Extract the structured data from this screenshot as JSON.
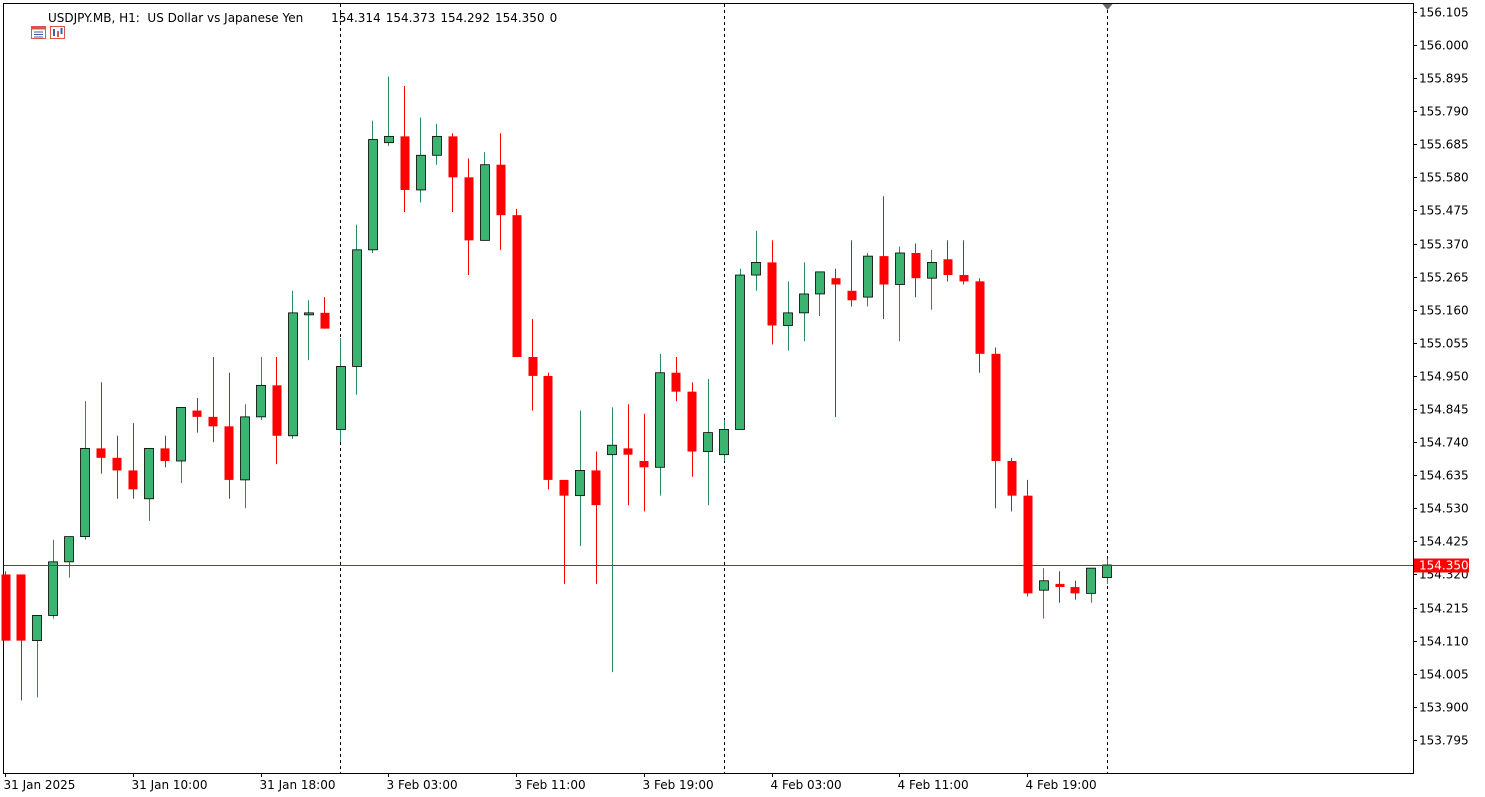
{
  "header": {
    "symbol": "USDJPY.MB, H1:",
    "description": "US Dollar vs Japanese Yen",
    "open": "154.314",
    "high": "154.373",
    "low": "154.292",
    "close": "154.350",
    "tick_volume": "0",
    "icons": [
      "calendar-list-icon",
      "chart-settings-icon"
    ]
  },
  "colors": {
    "bull": "#3cb371",
    "bear": "#ff0000",
    "outline": "#000000",
    "price_line": "#ff0000",
    "price_tag": "#ff0000",
    "separator": "#000000",
    "marker": "#666666"
  },
  "chart_data": {
    "type": "candlestick",
    "title": "USDJPY.MB, H1: US Dollar vs Japanese Yen",
    "ylim": [
      153.69,
      156.13
    ],
    "y_ticks": [
      "156.105",
      "156.000",
      "155.895",
      "155.790",
      "155.685",
      "155.580",
      "155.475",
      "155.370",
      "155.265",
      "155.160",
      "155.055",
      "154.950",
      "154.845",
      "154.740",
      "154.635",
      "154.530",
      "154.425",
      "154.320",
      "154.215",
      "154.110",
      "154.005",
      "153.900",
      "153.795"
    ],
    "x_ticks": [
      {
        "index": 0,
        "label": "31 Jan 2025"
      },
      {
        "index": 8,
        "label": "31 Jan 10:00"
      },
      {
        "index": 16,
        "label": "31 Jan 18:00"
      },
      {
        "index": 24,
        "label": "3 Feb 03:00"
      },
      {
        "index": 32,
        "label": "3 Feb 11:00"
      },
      {
        "index": 40,
        "label": "3 Feb 19:00"
      },
      {
        "index": 48,
        "label": "4 Feb 03:00"
      },
      {
        "index": 56,
        "label": "4 Feb 11:00"
      },
      {
        "index": 64,
        "label": "4 Feb 19:00"
      }
    ],
    "day_separators": [
      21,
      45,
      69
    ],
    "last_price": "154.350",
    "last_price_value": 154.35,
    "candles": [
      {
        "o": 154.32,
        "h": 154.33,
        "l": 154.11,
        "c": 154.11
      },
      {
        "o": 154.32,
        "h": 154.32,
        "l": 153.92,
        "c": 154.11
      },
      {
        "o": 154.11,
        "h": 154.19,
        "l": 153.93,
        "c": 154.19
      },
      {
        "o": 154.19,
        "h": 154.43,
        "l": 154.18,
        "c": 154.36
      },
      {
        "o": 154.36,
        "h": 154.44,
        "l": 154.31,
        "c": 154.44
      },
      {
        "o": 154.44,
        "h": 154.87,
        "l": 154.43,
        "c": 154.72
      },
      {
        "o": 154.72,
        "h": 154.93,
        "l": 154.64,
        "c": 154.69
      },
      {
        "o": 154.69,
        "h": 154.76,
        "l": 154.56,
        "c": 154.65
      },
      {
        "o": 154.65,
        "h": 154.8,
        "l": 154.56,
        "c": 154.59
      },
      {
        "o": 154.56,
        "h": 154.72,
        "l": 154.49,
        "c": 154.72
      },
      {
        "o": 154.72,
        "h": 154.76,
        "l": 154.66,
        "c": 154.68
      },
      {
        "o": 154.68,
        "h": 154.85,
        "l": 154.61,
        "c": 154.85
      },
      {
        "o": 154.84,
        "h": 154.88,
        "l": 154.77,
        "c": 154.82
      },
      {
        "o": 154.82,
        "h": 155.01,
        "l": 154.74,
        "c": 154.79
      },
      {
        "o": 154.79,
        "h": 154.96,
        "l": 154.56,
        "c": 154.62
      },
      {
        "o": 154.62,
        "h": 154.86,
        "l": 154.53,
        "c": 154.82
      },
      {
        "o": 154.82,
        "h": 155.01,
        "l": 154.81,
        "c": 154.92
      },
      {
        "o": 154.92,
        "h": 155.01,
        "l": 154.67,
        "c": 154.76
      },
      {
        "o": 154.76,
        "h": 155.22,
        "l": 154.75,
        "c": 155.15
      },
      {
        "o": 155.15,
        "h": 155.19,
        "l": 155.0,
        "c": 155.15
      },
      {
        "o": 155.15,
        "h": 155.2,
        "l": 155.1,
        "c": 155.1
      },
      {
        "o": 154.78,
        "h": 155.07,
        "l": 154.74,
        "c": 154.98
      },
      {
        "o": 154.98,
        "h": 155.43,
        "l": 154.89,
        "c": 155.35
      },
      {
        "o": 155.35,
        "h": 155.76,
        "l": 155.34,
        "c": 155.7
      },
      {
        "o": 155.69,
        "h": 155.9,
        "l": 155.68,
        "c": 155.71
      },
      {
        "o": 155.71,
        "h": 155.87,
        "l": 155.47,
        "c": 155.54
      },
      {
        "o": 155.54,
        "h": 155.77,
        "l": 155.5,
        "c": 155.65
      },
      {
        "o": 155.65,
        "h": 155.75,
        "l": 155.62,
        "c": 155.71
      },
      {
        "o": 155.71,
        "h": 155.72,
        "l": 155.47,
        "c": 155.58
      },
      {
        "o": 155.58,
        "h": 155.64,
        "l": 155.27,
        "c": 155.38
      },
      {
        "o": 155.38,
        "h": 155.66,
        "l": 155.38,
        "c": 155.62
      },
      {
        "o": 155.62,
        "h": 155.72,
        "l": 155.35,
        "c": 155.46
      },
      {
        "o": 155.46,
        "h": 155.48,
        "l": 155.01,
        "c": 155.01
      },
      {
        "o": 155.01,
        "h": 155.13,
        "l": 154.84,
        "c": 154.95
      },
      {
        "o": 154.95,
        "h": 154.96,
        "l": 154.59,
        "c": 154.62
      },
      {
        "o": 154.62,
        "h": 154.61,
        "l": 154.29,
        "c": 154.57
      },
      {
        "o": 154.57,
        "h": 154.84,
        "l": 154.41,
        "c": 154.65
      },
      {
        "o": 154.65,
        "h": 154.71,
        "l": 154.29,
        "c": 154.54
      },
      {
        "o": 154.7,
        "h": 154.85,
        "l": 154.01,
        "c": 154.73
      },
      {
        "o": 154.72,
        "h": 154.86,
        "l": 154.54,
        "c": 154.7
      },
      {
        "o": 154.68,
        "h": 154.83,
        "l": 154.52,
        "c": 154.66
      },
      {
        "o": 154.66,
        "h": 155.02,
        "l": 154.57,
        "c": 154.96
      },
      {
        "o": 154.96,
        "h": 155.01,
        "l": 154.87,
        "c": 154.9
      },
      {
        "o": 154.9,
        "h": 154.93,
        "l": 154.63,
        "c": 154.71
      },
      {
        "o": 154.71,
        "h": 154.94,
        "l": 154.54,
        "c": 154.77
      },
      {
        "o": 154.7,
        "h": 154.81,
        "l": 154.68,
        "c": 154.78
      },
      {
        "o": 154.78,
        "h": 155.29,
        "l": 154.78,
        "c": 155.27
      },
      {
        "o": 155.27,
        "h": 155.41,
        "l": 155.22,
        "c": 155.31
      },
      {
        "o": 155.31,
        "h": 155.38,
        "l": 155.05,
        "c": 155.11
      },
      {
        "o": 155.11,
        "h": 155.25,
        "l": 155.03,
        "c": 155.15
      },
      {
        "o": 155.15,
        "h": 155.31,
        "l": 155.06,
        "c": 155.21
      },
      {
        "o": 155.21,
        "h": 155.28,
        "l": 155.14,
        "c": 155.28
      },
      {
        "o": 155.26,
        "h": 155.29,
        "l": 154.82,
        "c": 155.24
      },
      {
        "o": 155.22,
        "h": 155.38,
        "l": 155.17,
        "c": 155.19
      },
      {
        "o": 155.2,
        "h": 155.34,
        "l": 155.17,
        "c": 155.33
      },
      {
        "o": 155.33,
        "h": 155.52,
        "l": 155.13,
        "c": 155.24
      },
      {
        "o": 155.24,
        "h": 155.36,
        "l": 155.06,
        "c": 155.34
      },
      {
        "o": 155.34,
        "h": 155.37,
        "l": 155.2,
        "c": 155.26
      },
      {
        "o": 155.26,
        "h": 155.35,
        "l": 155.16,
        "c": 155.31
      },
      {
        "o": 155.32,
        "h": 155.38,
        "l": 155.25,
        "c": 155.27
      },
      {
        "o": 155.27,
        "h": 155.38,
        "l": 155.24,
        "c": 155.25
      },
      {
        "o": 155.25,
        "h": 155.26,
        "l": 154.96,
        "c": 155.02
      },
      {
        "o": 155.02,
        "h": 155.04,
        "l": 154.53,
        "c": 154.68
      },
      {
        "o": 154.68,
        "h": 154.69,
        "l": 154.52,
        "c": 154.57
      },
      {
        "o": 154.57,
        "h": 154.62,
        "l": 154.25,
        "c": 154.26
      },
      {
        "o": 154.27,
        "h": 154.34,
        "l": 154.18,
        "c": 154.3
      },
      {
        "o": 154.29,
        "h": 154.33,
        "l": 154.23,
        "c": 154.28
      },
      {
        "o": 154.28,
        "h": 154.3,
        "l": 154.24,
        "c": 154.26
      },
      {
        "o": 154.26,
        "h": 154.34,
        "l": 154.23,
        "c": 154.34
      },
      {
        "o": 154.31,
        "h": 154.37,
        "l": 154.29,
        "c": 154.35
      }
    ]
  }
}
